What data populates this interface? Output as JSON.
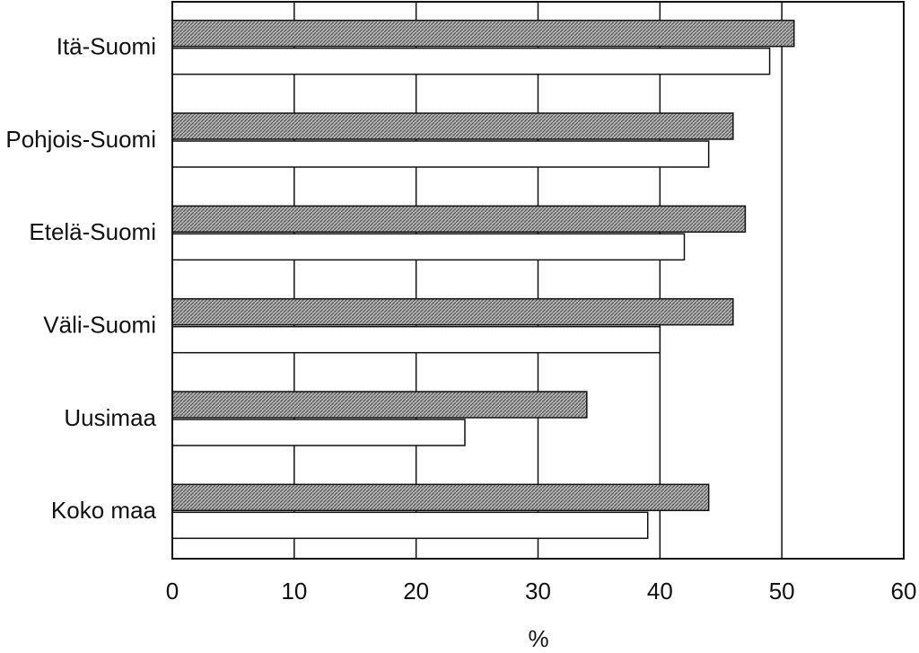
{
  "chart_data": {
    "type": "hbar",
    "x_label": "%",
    "categories": [
      "Itä-Suomi",
      "Pohjois-Suomi",
      "Etelä-Suomi",
      "Väli-Suomi",
      "Uusimaa",
      "Koko maa"
    ],
    "series": [
      {
        "color": "#8f8f8f",
        "values": [
          51,
          46,
          47,
          46,
          34,
          44
        ]
      },
      {
        "color": "#ffffff",
        "values": [
          49,
          44,
          42,
          40,
          24,
          39
        ]
      }
    ],
    "xlim": [
      0,
      60
    ],
    "xticks": [
      0,
      10,
      20,
      30,
      40,
      50,
      60
    ],
    "grid": true
  }
}
